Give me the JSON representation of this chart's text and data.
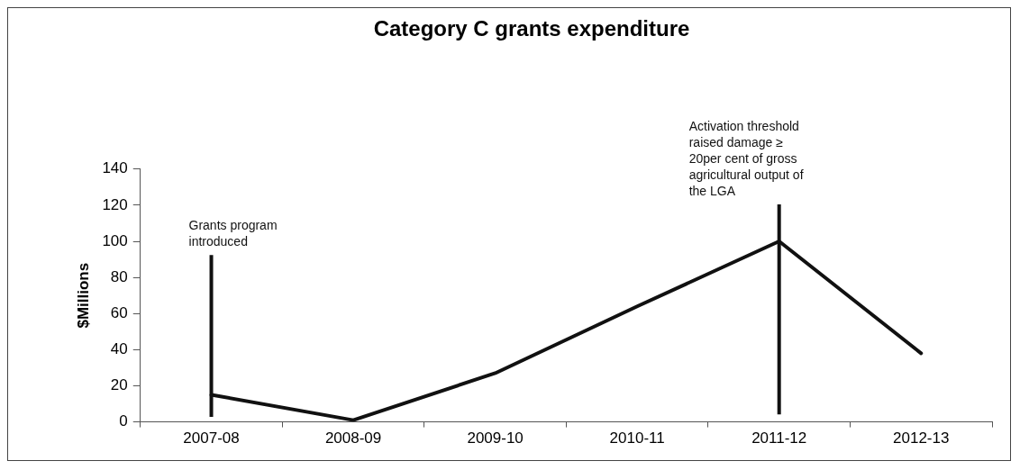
{
  "chart_data": {
    "type": "line",
    "title": "Category C grants expenditure",
    "ylabel": "$Millions",
    "categories": [
      "2007-08",
      "2008-09",
      "2009-10",
      "2010-11",
      "2011-12",
      "2012-13"
    ],
    "series": [
      {
        "color": "#111111",
        "values": [
          15,
          1,
          27,
          64,
          100,
          38
        ]
      }
    ],
    "ylim": [
      0,
      140
    ],
    "yticks": [
      0,
      20,
      40,
      60,
      80,
      100,
      120,
      140
    ],
    "ref_lines": [
      {
        "axis": "x",
        "value": "2007-08",
        "label": "Grants program introduced",
        "color": "#111111"
      },
      {
        "axis": "x",
        "value": "2011-12",
        "label": "Activation threshold raised damage ≥ 20per cent of gross agricultural output of the LGA",
        "color": "#111111"
      }
    ],
    "grid": false,
    "legend": false,
    "marker": "none",
    "line_style": "solid"
  }
}
